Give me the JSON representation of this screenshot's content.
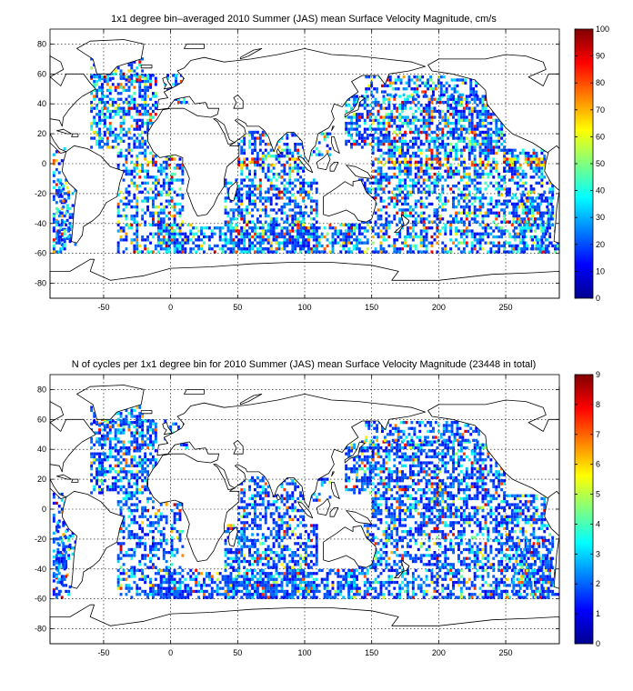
{
  "chart_data": [
    {
      "type": "heatmap",
      "title": "1x1 degree bin–averaged 2010 Summer (JAS) mean Surface Velocity Magnitude, cm/s",
      "xlabel": "",
      "ylabel": "",
      "xlim": [
        -90,
        290
      ],
      "ylim": [
        -90,
        90
      ],
      "x_ticks": [
        -50,
        0,
        50,
        100,
        150,
        200,
        250
      ],
      "y_ticks": [
        80,
        60,
        40,
        20,
        0,
        -20,
        -40,
        -60,
        -80
      ],
      "colorbar": {
        "range": [
          0,
          100
        ],
        "ticks": [
          0,
          10,
          20,
          30,
          40,
          50,
          60,
          70,
          80,
          90,
          100
        ],
        "colormap": "jet"
      },
      "grid": true,
      "values_note": ""
    },
    {
      "type": "heatmap",
      "title": "N of cycles per 1x1 degree bin for 2010 Summer (JAS) mean Surface Velocity Magnitude (23448 in total)",
      "xlabel": "",
      "ylabel": "",
      "xlim": [
        -90,
        290
      ],
      "ylim": [
        -90,
        90
      ],
      "x_ticks": [
        -50,
        0,
        50,
        100,
        150,
        200,
        250
      ],
      "y_ticks": [
        80,
        60,
        40,
        20,
        0,
        -20,
        -40,
        -60,
        -80
      ],
      "colorbar": {
        "range": [
          0,
          9
        ],
        "ticks": [
          0,
          1,
          2,
          3,
          4,
          5,
          6,
          7,
          8,
          9
        ],
        "colormap": "jet"
      },
      "grid": true,
      "total_cycles": 23448
    }
  ],
  "colors": {
    "jet_dark_blue": "#00008f",
    "jet_blue": "#0000ff",
    "jet_cyan": "#00ffff",
    "jet_yellow": "#ffff00",
    "jet_red": "#ff0000",
    "jet_dark_red": "#800000",
    "coastline": "#000000",
    "land": "#ffffff"
  }
}
